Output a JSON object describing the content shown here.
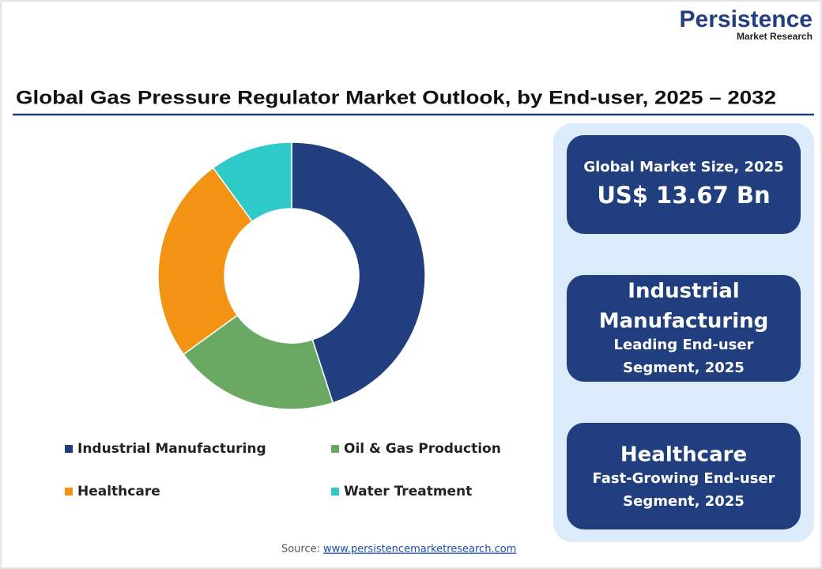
{
  "logo": {
    "name": "Persistence",
    "tagline": "Market Research"
  },
  "chart_data": {
    "type": "pie",
    "title": "Global Gas Pressure Regulator Market Outlook, by End-user, 2025 – 2032",
    "categories": [
      "Industrial Manufacturing",
      "Oil & Gas Production",
      "Healthcare",
      "Water Treatment"
    ],
    "values": [
      45,
      20,
      25,
      10
    ],
    "colors": [
      "#213f7e",
      "#6aa964",
      "#f39314",
      "#2ecac8"
    ],
    "donut": true
  },
  "panel": [
    {
      "label": "Global Market Size, 2025",
      "value": "US$ 13.67 Bn"
    },
    {
      "headline": [
        "Industrial",
        "Manufacturing"
      ],
      "caption": [
        "Leading End-user",
        "Segment, 2025"
      ]
    },
    {
      "headline": [
        "Healthcare"
      ],
      "caption": [
        "Fast-Growing End-user",
        "Segment, 2025"
      ]
    }
  ],
  "source": {
    "label": "Source:",
    "link": "www.persistencemarketresearch.com"
  }
}
